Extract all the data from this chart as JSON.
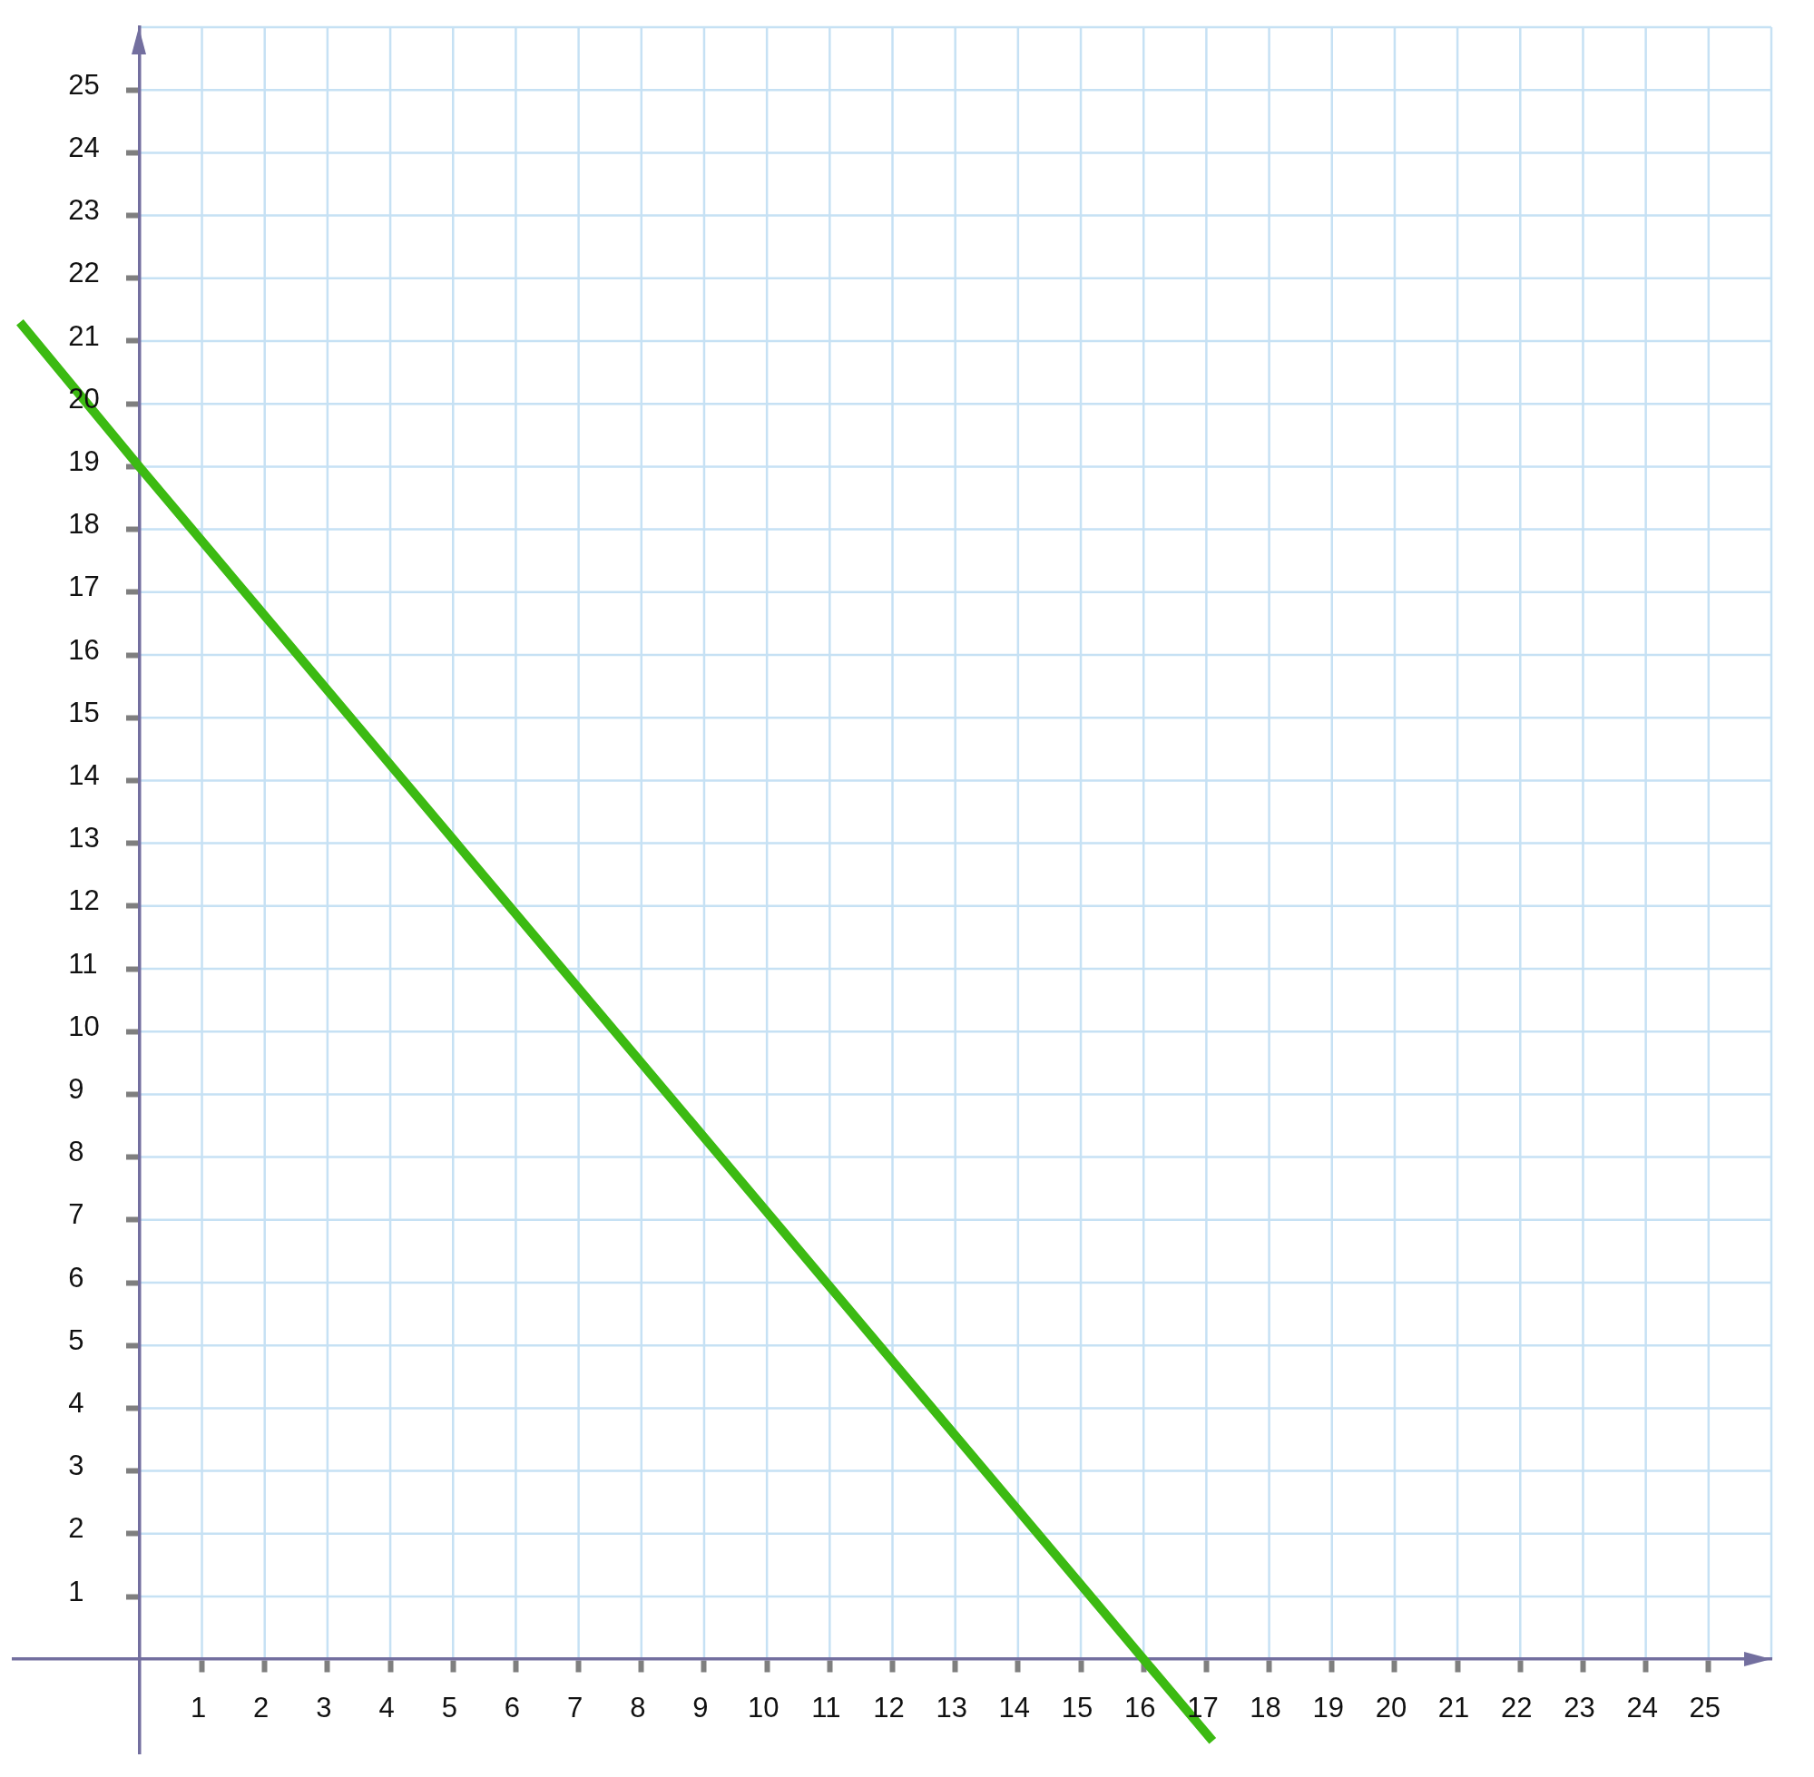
{
  "chart_data": {
    "type": "line",
    "x": [
      -1.9,
      0,
      16,
      17.1
    ],
    "values": [
      21.3,
      19,
      0,
      -1.3
    ],
    "color": "#3cba12",
    "xlim": [
      -2,
      26
    ],
    "ylim": [
      -1.5,
      26
    ],
    "xticks": [
      1,
      2,
      3,
      4,
      5,
      6,
      7,
      8,
      9,
      10,
      11,
      12,
      13,
      14,
      15,
      16,
      17,
      18,
      19,
      20,
      21,
      22,
      23,
      24,
      25
    ],
    "yticks": [
      1,
      2,
      3,
      4,
      5,
      6,
      7,
      8,
      9,
      10,
      11,
      12,
      13,
      14,
      15,
      16,
      17,
      18,
      19,
      20,
      21,
      22,
      23,
      24,
      25
    ],
    "grid": true,
    "marker": "none",
    "line_style": "solid"
  }
}
